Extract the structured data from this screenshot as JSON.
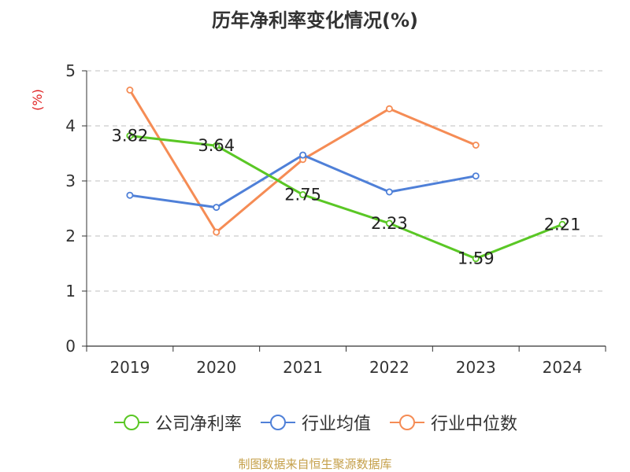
{
  "chart_data": {
    "type": "line",
    "title": "历年净利率变化情况(%)",
    "ylabel": "(%)",
    "xlabel": "",
    "categories": [
      "2019",
      "2020",
      "2021",
      "2022",
      "2023",
      "2024"
    ],
    "ylim": [
      0,
      5
    ],
    "yticks": [
      "0",
      "1",
      "2",
      "3",
      "4",
      "5"
    ],
    "grid": true,
    "legend_position": "bottom",
    "series": [
      {
        "name": "公司净利率",
        "color": "#5ac725",
        "values": [
          3.82,
          3.64,
          2.75,
          2.23,
          1.59,
          2.21
        ],
        "labels": [
          "3.82",
          "3.64",
          "2.75",
          "2.23",
          "1.59",
          "2.21"
        ]
      },
      {
        "name": "行业均值",
        "color": "#4f80d8",
        "values": [
          2.74,
          2.52,
          3.47,
          2.8,
          3.09,
          null
        ]
      },
      {
        "name": "行业中位数",
        "color": "#f58c55",
        "values": [
          4.65,
          2.07,
          3.39,
          4.31,
          3.65,
          null
        ]
      }
    ]
  },
  "source": "制图数据来自恒生聚源数据库"
}
